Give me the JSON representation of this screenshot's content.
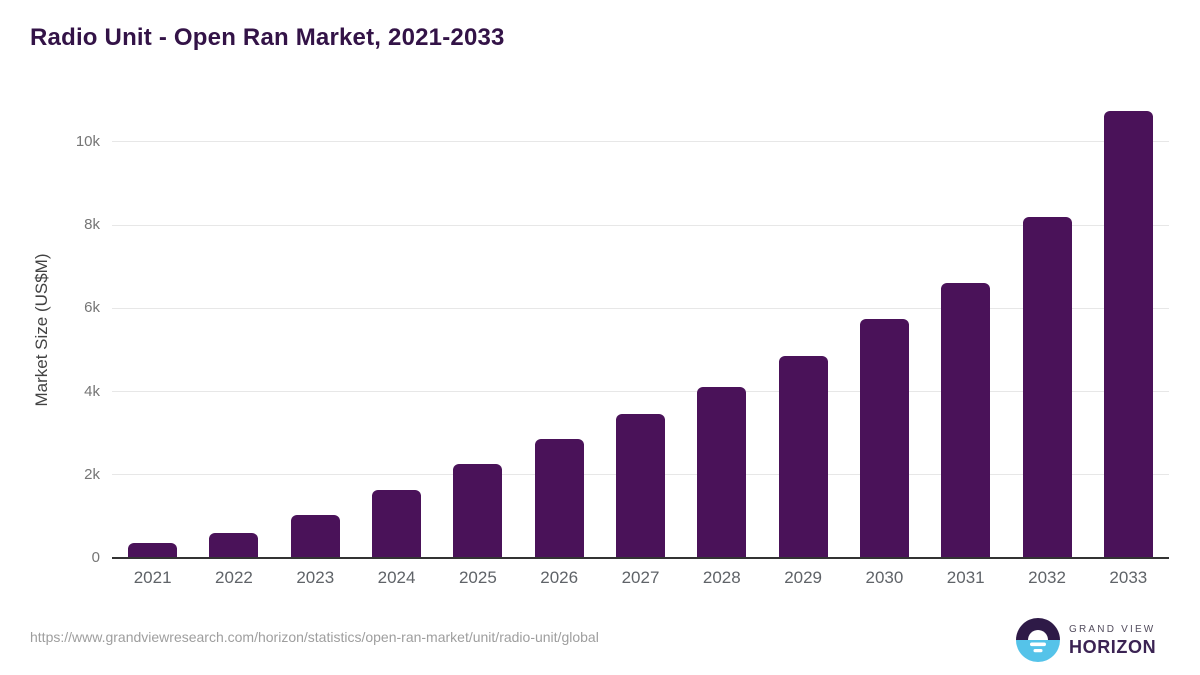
{
  "title": "Radio Unit - Open Ran Market, 2021-2033",
  "source_url": "https://www.grandviewresearch.com/horizon/statistics/open-ran-market/unit/radio-unit/global",
  "logo": {
    "line1": "GRAND VIEW",
    "line2": "HORIZON"
  },
  "colors": {
    "bar_fill": "#4a1259",
    "title_text": "#331347",
    "axis_title_text": "#424242",
    "ytick_text": "#757575",
    "xtick_text": "#5f6368",
    "grid_line": "#e7e7e7",
    "axis_line": "#333333",
    "url_text": "#9e9e9e",
    "logo_dark": "#2e1a47",
    "logo_blue": "#55c3e9",
    "logo_text": "#3b2353",
    "brand_text": "#534d5e"
  },
  "chart_data": {
    "type": "bar",
    "title": "Radio Unit - Open Ran Market, 2021-2033",
    "categories": [
      "2021",
      "2022",
      "2023",
      "2024",
      "2025",
      "2026",
      "2027",
      "2028",
      "2029",
      "2030",
      "2031",
      "2032",
      "2033"
    ],
    "values": [
      350,
      610,
      1030,
      1630,
      2270,
      2860,
      3450,
      4100,
      4850,
      5750,
      6600,
      8200,
      10750
    ],
    "xlabel": "",
    "ylabel": "Market Size (US$M)",
    "ylim": [
      0,
      11200
    ],
    "yticks": [
      0,
      2000,
      4000,
      6000,
      8000,
      10000
    ],
    "ytick_labels": [
      "0",
      "2k",
      "4k",
      "6k",
      "8k",
      "10k"
    ],
    "grid": true,
    "legend": false,
    "bar_color": "#4a1259"
  }
}
